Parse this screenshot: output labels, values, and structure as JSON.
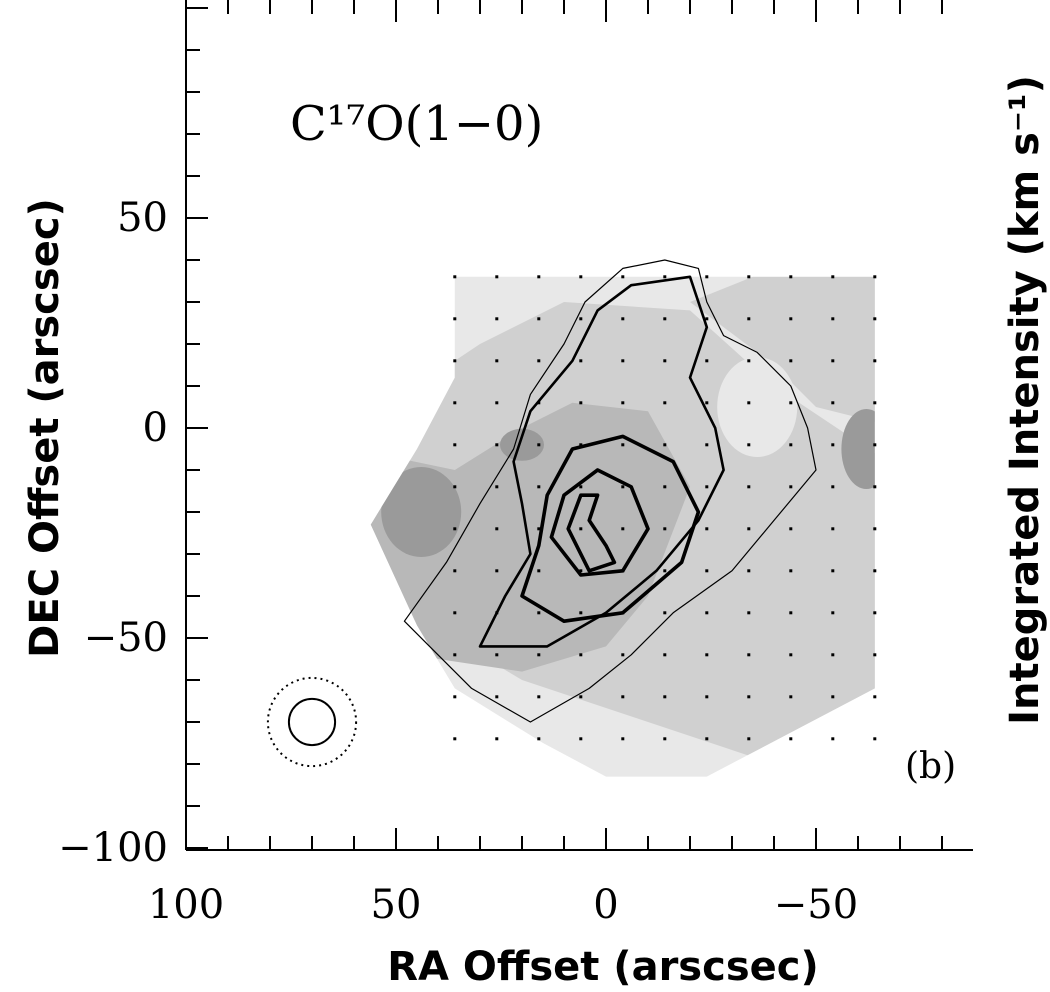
{
  "chart_data": {
    "type": "heatmap",
    "title": "C¹⁷O(1−0)",
    "panel_label": "(b)",
    "xlabel": "RA Offset (arscsec)",
    "ylabel": "DEC Offset (arscsec)",
    "colorbar_label": "Integrated Intensity (km s⁻¹)",
    "xlim": [
      100,
      -85
    ],
    "ylim": [
      -100,
      100
    ],
    "x_ticks": [
      {
        "value": 100,
        "label": "100"
      },
      {
        "value": 50,
        "label": "50"
      },
      {
        "value": 0,
        "label": "0"
      },
      {
        "value": -50,
        "label": "−50"
      }
    ],
    "y_ticks": [
      {
        "value": 50,
        "label": "50"
      },
      {
        "value": 0,
        "label": "0"
      },
      {
        "value": -50,
        "label": "−50"
      },
      {
        "value": -100,
        "label": "−100"
      }
    ],
    "grayscale_levels": [
      "#e8e8e8",
      "#d0d0d0",
      "#b8b8b8",
      "#9a9a9a"
    ],
    "map_outline": [
      [
        36,
        36
      ],
      [
        -64,
        36
      ],
      [
        -64,
        -62
      ],
      [
        -24,
        -83
      ],
      [
        0,
        -83
      ],
      [
        15,
        -75
      ],
      [
        36,
        -62
      ],
      [
        45,
        -47
      ],
      [
        56,
        -23
      ],
      [
        45,
        -5
      ],
      [
        36,
        12
      ]
    ],
    "sample_grid": {
      "x_start": 36,
      "x_end": -64,
      "x_step": 10,
      "y_start": 36,
      "y_end": -83,
      "y_step": 10
    },
    "beam": {
      "x": 70,
      "y": -70,
      "radius": 5.5,
      "outer_radius": 10.5
    },
    "contours": [
      {
        "level": 1,
        "points": [
          [
            48,
            -46
          ],
          [
            38,
            -32
          ],
          [
            30,
            -18
          ],
          [
            22,
            -5
          ],
          [
            18,
            8
          ],
          [
            10,
            20
          ],
          [
            5,
            30
          ],
          [
            -4,
            38
          ],
          [
            -14,
            40
          ],
          [
            -22,
            38
          ],
          [
            -24,
            30
          ],
          [
            -28,
            22
          ],
          [
            -36,
            18
          ],
          [
            -44,
            10
          ],
          [
            -48,
            0
          ],
          [
            -50,
            -10
          ],
          [
            -40,
            -22
          ],
          [
            -30,
            -34
          ],
          [
            -16,
            -44
          ],
          [
            -6,
            -54
          ],
          [
            4,
            -62
          ],
          [
            18,
            -70
          ],
          [
            32,
            -62
          ],
          [
            42,
            -52
          ]
        ]
      },
      {
        "level": 2,
        "points": [
          [
            30,
            -52
          ],
          [
            24,
            -40
          ],
          [
            18,
            -30
          ],
          [
            20,
            -18
          ],
          [
            22,
            -8
          ],
          [
            18,
            4
          ],
          [
            8,
            16
          ],
          [
            2,
            28
          ],
          [
            -6,
            34
          ],
          [
            -20,
            36
          ],
          [
            -24,
            24
          ],
          [
            -20,
            12
          ],
          [
            -26,
            0
          ],
          [
            -28,
            -10
          ],
          [
            -22,
            -22
          ],
          [
            -12,
            -34
          ],
          [
            0,
            -44
          ],
          [
            14,
            -52
          ]
        ]
      },
      {
        "level": 3,
        "points": [
          [
            20,
            -40
          ],
          [
            16,
            -28
          ],
          [
            14,
            -16
          ],
          [
            8,
            -5
          ],
          [
            -4,
            -2
          ],
          [
            -16,
            -8
          ],
          [
            -22,
            -20
          ],
          [
            -18,
            -32
          ],
          [
            -4,
            -44
          ],
          [
            10,
            -46
          ]
        ]
      },
      {
        "level": 4,
        "points": [
          [
            13,
            -26
          ],
          [
            10,
            -16
          ],
          [
            2,
            -10
          ],
          [
            -6,
            -14
          ],
          [
            -10,
            -24
          ],
          [
            -4,
            -34
          ],
          [
            6,
            -35
          ]
        ]
      },
      {
        "level": 5,
        "points": [
          [
            9,
            -24
          ],
          [
            6,
            -16
          ],
          [
            2,
            -16
          ],
          [
            4,
            -22
          ],
          [
            0,
            -28
          ],
          [
            -2,
            -32
          ],
          [
            4,
            -34
          ]
        ]
      }
    ]
  }
}
